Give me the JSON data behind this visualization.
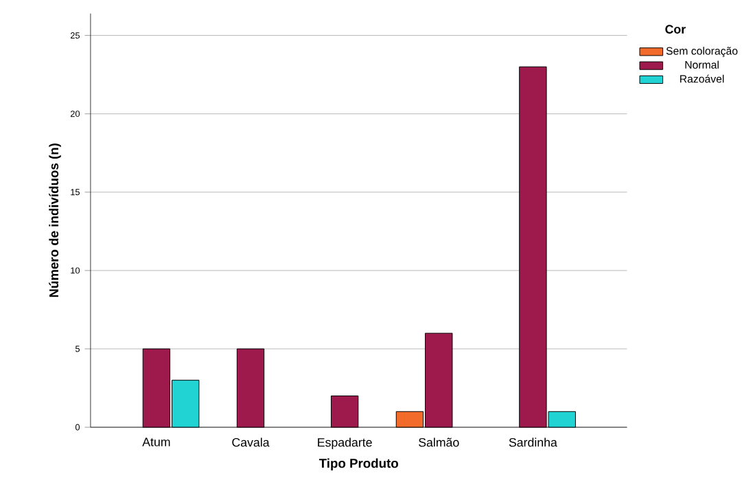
{
  "chart_data": {
    "type": "bar",
    "xlabel": "Tipo Produto",
    "ylabel": "Número de indivíduos (n)",
    "legend_title": "Cor",
    "categories": [
      "Atum",
      "Cavala",
      "Espadarte",
      "Salmão",
      "Sardinha"
    ],
    "series": [
      {
        "name": "Sem coloração",
        "color": "#f26b2a",
        "values": [
          null,
          null,
          null,
          1,
          null
        ]
      },
      {
        "name": "Normal",
        "color": "#9e1a4c",
        "values": [
          5,
          5,
          2,
          6,
          23
        ]
      },
      {
        "name": "Razoável",
        "color": "#22d3d3",
        "values": [
          3,
          null,
          null,
          null,
          1
        ]
      }
    ],
    "ylim": [
      0,
      26.4
    ],
    "yticks": [
      0,
      5,
      10,
      15,
      20,
      25
    ],
    "grid": "y",
    "legend": "top right"
  }
}
